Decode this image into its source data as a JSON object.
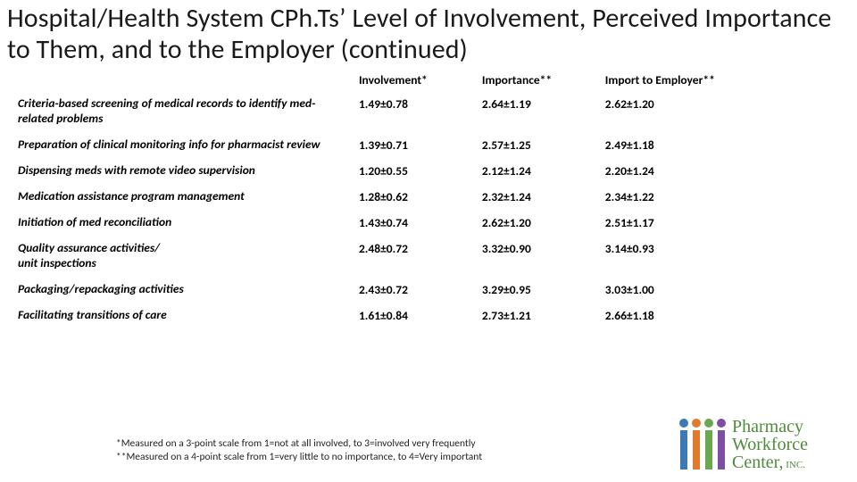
{
  "title": "Hospital/Health System CPh.Ts’ Level of Involvement, Perceived Importance to Them, and to the Employer (continued)",
  "headers": {
    "col1": "",
    "col2": "Involvement*",
    "col3": "Importance**",
    "col4": "Import to Employer**"
  },
  "rows": [
    {
      "label": "Criteria-based screening of medical records to identify med-related problems",
      "v1": "1.49±0.78",
      "v2": "2.64±1.19",
      "v3": "2.62±1.20"
    },
    {
      "label": "Preparation of clinical monitoring info for pharmacist review",
      "v1": "1.39±0.71",
      "v2": "2.57±1.25",
      "v3": "2.49±1.18"
    },
    {
      "label": "Dispensing meds with remote video supervision",
      "v1": "1.20±0.55",
      "v2": "2.12±1.24",
      "v3": "2.20±1.24"
    },
    {
      "label": "Medication assistance program management",
      "v1": "1.28±0.62",
      "v2": "2.32±1.24",
      "v3": "2.34±1.22"
    },
    {
      "label": "Initiation of med reconciliation",
      "v1": "1.43±0.74",
      "v2": "2.62±1.20",
      "v3": "2.51±1.17"
    },
    {
      "label": "Quality assurance activities/\nunit inspections",
      "v1": "2.48±0.72",
      "v2": "3.32±0.90",
      "v3": "3.14±0.93"
    },
    {
      "label": "Packaging/repackaging activities",
      "v1": "2.43±0.72",
      "v2": "3.29±0.95",
      "v3": "3.03±1.00"
    },
    {
      "label": "Facilitating transitions of care",
      "v1": "1.61±0.84",
      "v2": "2.73±1.21",
      "v3": "2.66±1.18"
    }
  ],
  "footnotes": {
    "f1": "*Measured on a 3-point scale from 1=not at all involved, to 3=involved very frequently",
    "f2": "**Measured on a 4-point scale from 1=very little to no importance, to 4=Very important"
  },
  "logo": {
    "main_text": "Pharmacy",
    "line2": "Workforce",
    "line3_a": "Center,",
    "line3_b": " INC.",
    "text_color": "#4f8a3d",
    "bar_colors": [
      "#3d79b7",
      "#e07a2c",
      "#6aa84f",
      "#7d4ea3"
    ],
    "dot_colors": [
      "#3d79b7",
      "#e07a2c",
      "#6aa84f",
      "#7d4ea3"
    ]
  },
  "colors": {
    "page_bg": "#ffffff",
    "title_color": "#1a1a1a",
    "body_color": "#000000"
  },
  "fonts": {
    "title_pt": 30,
    "body_pt": 13.5,
    "footnote_pt": 11.5
  }
}
